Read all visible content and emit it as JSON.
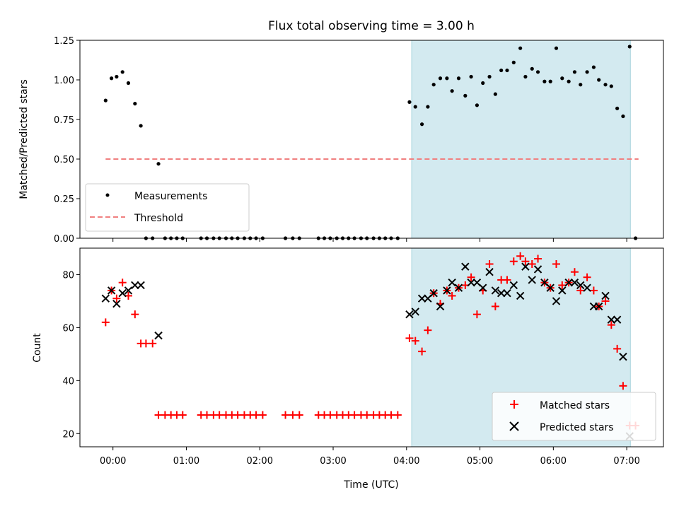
{
  "chart_data": [
    {
      "type": "scatter",
      "title": "Flux total observing time = 3.00 h",
      "ylabel": "Matched/Predicted stars",
      "xlabel": "",
      "ylim": [
        0,
        1.25
      ],
      "y_ticks": [
        "0.00",
        "0.25",
        "0.50",
        "0.75",
        "1.00",
        "1.25"
      ],
      "shaded_region": {
        "x_start": 4.07,
        "x_end": 7.05,
        "color": "#d3eaf0"
      },
      "threshold": {
        "name": "Threshold",
        "y": 0.5,
        "color": "#f08080"
      },
      "series": [
        {
          "name": "Measurements",
          "color": "#000000",
          "x": [
            -0.1,
            -0.02,
            0.05,
            0.13,
            0.21,
            0.3,
            0.38,
            0.45,
            0.54,
            0.62,
            0.71,
            0.79,
            0.87,
            0.95,
            1.2,
            1.28,
            1.37,
            1.45,
            1.54,
            1.62,
            1.7,
            1.79,
            1.87,
            1.95,
            2.04,
            2.35,
            2.45,
            2.54,
            2.8,
            2.88,
            2.96,
            3.05,
            3.13,
            3.21,
            3.29,
            3.38,
            3.46,
            3.55,
            3.63,
            3.71,
            3.79,
            3.88,
            4.04,
            4.12,
            4.21,
            4.29,
            4.37,
            4.46,
            4.55,
            4.62,
            4.71,
            4.8,
            4.88,
            4.96,
            5.04,
            5.13,
            5.21,
            5.29,
            5.37,
            5.46,
            5.55,
            5.62,
            5.71,
            5.79,
            5.88,
            5.96,
            6.04,
            6.12,
            6.21,
            6.29,
            6.37,
            6.46,
            6.55,
            6.62,
            6.71,
            6.79,
            6.87,
            6.95,
            7.04,
            7.12
          ],
          "y": [
            0.87,
            1.01,
            1.02,
            1.05,
            0.98,
            0.85,
            0.71,
            0,
            0,
            0.47,
            0,
            0,
            0,
            0,
            0,
            0,
            0,
            0,
            0,
            0,
            0,
            0,
            0,
            0,
            0,
            0,
            0,
            0,
            0,
            0,
            0,
            0,
            0,
            0,
            0,
            0,
            0,
            0,
            0,
            0,
            0,
            0,
            0.86,
            0.83,
            0.72,
            0.83,
            0.97,
            1.01,
            1.01,
            0.93,
            1.01,
            0.9,
            1.02,
            0.84,
            0.98,
            1.02,
            0.91,
            1.06,
            1.06,
            1.11,
            1.2,
            1.02,
            1.07,
            1.05,
            0.99,
            0.99,
            1.2,
            1.01,
            0.99,
            1.05,
            0.97,
            1.05,
            1.08,
            1.0,
            0.97,
            0.96,
            0.82,
            0.77,
            1.21,
            0
          ]
        }
      ],
      "legend": {
        "placement": "lower-left",
        "entries": [
          "Measurements",
          "Threshold"
        ]
      }
    },
    {
      "type": "scatter",
      "title": "",
      "xlabel": "Time (UTC)",
      "ylabel": "Count",
      "ylim": [
        15,
        90
      ],
      "y_ticks": [
        "20",
        "40",
        "60",
        "80"
      ],
      "x_tick_labels": [
        "00:00",
        "01:00",
        "02:00",
        "03:00",
        "04:00",
        "05:00",
        "06:00",
        "07:00"
      ],
      "x_range_hours": [
        -0.45,
        7.5
      ],
      "shaded_region": {
        "x_start": 4.07,
        "x_end": 7.05,
        "color": "#d3eaf0"
      },
      "series": [
        {
          "name": "Matched stars",
          "color": "#ff0000",
          "marker": "+",
          "x": [
            -0.1,
            -0.02,
            0.05,
            0.13,
            0.21,
            0.3,
            0.38,
            0.45,
            0.54,
            0.62,
            0.71,
            0.79,
            0.87,
            0.95,
            1.2,
            1.28,
            1.37,
            1.45,
            1.54,
            1.62,
            1.7,
            1.79,
            1.87,
            1.95,
            2.04,
            2.35,
            2.45,
            2.54,
            2.8,
            2.88,
            2.96,
            3.05,
            3.13,
            3.21,
            3.29,
            3.38,
            3.46,
            3.55,
            3.63,
            3.71,
            3.79,
            3.88,
            4.04,
            4.12,
            4.21,
            4.29,
            4.37,
            4.46,
            4.55,
            4.62,
            4.71,
            4.8,
            4.88,
            4.96,
            5.04,
            5.13,
            5.21,
            5.29,
            5.37,
            5.46,
            5.55,
            5.62,
            5.71,
            5.79,
            5.88,
            5.96,
            6.04,
            6.12,
            6.21,
            6.29,
            6.37,
            6.46,
            6.55,
            6.62,
            6.71,
            6.79,
            6.87,
            6.95,
            7.04,
            7.12
          ],
          "y": [
            62,
            74,
            71,
            77,
            72,
            65,
            54,
            54,
            54,
            27,
            27,
            27,
            27,
            27,
            27,
            27,
            27,
            27,
            27,
            27,
            27,
            27,
            27,
            27,
            27,
            27,
            27,
            27,
            27,
            27,
            27,
            27,
            27,
            27,
            27,
            27,
            27,
            27,
            27,
            27,
            27,
            27,
            56,
            55,
            51,
            59,
            73,
            69,
            74,
            72,
            75,
            76,
            79,
            65,
            74,
            84,
            68,
            78,
            78,
            85,
            87,
            85,
            84,
            86,
            77,
            75,
            84,
            76,
            77,
            81,
            74,
            79,
            74,
            68,
            70,
            61,
            52,
            38,
            23,
            23
          ]
        },
        {
          "name": "Predicted stars",
          "color": "#000000",
          "marker": "x",
          "x": [
            -0.1,
            -0.02,
            0.05,
            0.13,
            0.21,
            0.3,
            0.38,
            0.62,
            4.04,
            4.12,
            4.21,
            4.29,
            4.37,
            4.46,
            4.55,
            4.62,
            4.71,
            4.8,
            4.88,
            4.96,
            5.04,
            5.13,
            5.21,
            5.29,
            5.37,
            5.46,
            5.55,
            5.62,
            5.71,
            5.79,
            5.88,
            5.96,
            6.04,
            6.12,
            6.21,
            6.29,
            6.37,
            6.46,
            6.55,
            6.62,
            6.71,
            6.79,
            6.87,
            6.95,
            7.04
          ],
          "y": [
            71,
            74,
            69,
            73,
            74,
            76,
            76,
            57,
            65,
            66,
            71,
            71,
            73,
            68,
            74,
            77,
            75,
            83,
            77,
            77,
            75,
            81,
            74,
            73,
            73,
            76,
            72,
            83,
            78,
            82,
            77,
            75,
            70,
            74,
            77,
            77,
            76,
            75,
            68,
            68,
            72,
            63,
            63,
            49,
            19
          ]
        }
      ],
      "legend": {
        "placement": "lower-right",
        "entries": [
          "Matched stars",
          "Predicted stars"
        ]
      }
    }
  ]
}
